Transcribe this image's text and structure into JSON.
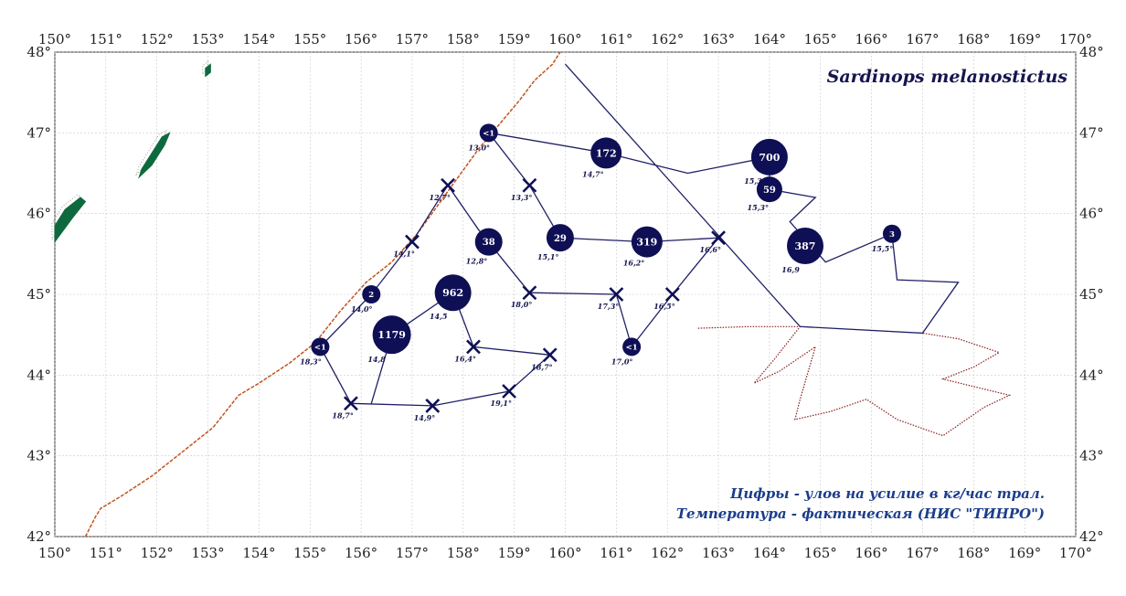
{
  "title": "Sardinops melanostictus",
  "legend": {
    "line1": "Цифры - улов на усилие в кг/час трал.",
    "line2": "Температура - фактическая (НИС \"ТИНРО\")"
  },
  "axes": {
    "lon_labels": [
      "150°",
      "151°",
      "152°",
      "153°",
      "154°",
      "155°",
      "156°",
      "157°",
      "158°",
      "159°",
      "160°",
      "161°",
      "162°",
      "163°",
      "164°",
      "165°",
      "166°",
      "167°",
      "168°",
      "169°",
      "170°"
    ],
    "lat_labels": [
      "48°",
      "47°",
      "46°",
      "45°",
      "44°",
      "43°",
      "42°"
    ],
    "lon_range": [
      150,
      170
    ],
    "lat_range": [
      42,
      48
    ]
  },
  "colors": {
    "track": "#1f1f66",
    "marker": "#0f0f55",
    "coast": "#c0551e",
    "land": "#0e6a3e",
    "zone": "#8a1e1e",
    "grid": "#c9c9c9"
  },
  "track": [
    [
      160.0,
      47.85
    ],
    [
      164.6,
      44.6
    ],
    [
      167.0,
      44.52
    ],
    [
      167.7,
      45.15
    ],
    [
      166.5,
      45.18
    ],
    [
      166.4,
      45.75
    ],
    [
      165.1,
      45.4
    ],
    [
      164.4,
      45.9
    ],
    [
      164.9,
      46.2
    ],
    [
      164.0,
      46.3
    ],
    [
      164.0,
      46.7
    ],
    [
      162.4,
      46.5
    ],
    [
      160.8,
      46.75
    ],
    [
      158.5,
      47.0
    ],
    [
      159.3,
      46.35
    ],
    [
      159.9,
      45.7
    ],
    [
      161.6,
      45.65
    ],
    [
      163.0,
      45.7
    ],
    [
      162.1,
      45.0
    ],
    [
      161.3,
      44.35
    ],
    [
      161.0,
      45.0
    ],
    [
      159.3,
      45.02
    ],
    [
      158.3,
      45.8
    ],
    [
      157.7,
      46.35
    ],
    [
      157.0,
      45.65
    ],
    [
      156.2,
      45.0
    ],
    [
      155.2,
      44.35
    ],
    [
      155.8,
      43.65
    ],
    [
      157.4,
      43.62
    ],
    [
      158.9,
      43.8
    ],
    [
      159.7,
      44.25
    ],
    [
      158.2,
      44.35
    ],
    [
      157.8,
      45.02
    ],
    [
      156.6,
      44.5
    ],
    [
      156.2,
      43.65
    ]
  ],
  "stations": [
    {
      "lon": 158.5,
      "lat": 47.0,
      "type": "circle",
      "catch": "<1",
      "r": 10,
      "temp": "13,0°"
    },
    {
      "lon": 160.8,
      "lat": 46.75,
      "type": "circle",
      "catch": "172",
      "r": 17,
      "temp": "14,7°"
    },
    {
      "lon": 164.0,
      "lat": 46.7,
      "type": "circle",
      "catch": "700",
      "r": 20,
      "temp": "15,3°"
    },
    {
      "lon": 164.0,
      "lat": 46.3,
      "type": "circle",
      "catch": "59",
      "r": 14,
      "temp": "15,3°"
    },
    {
      "lon": 164.7,
      "lat": 45.6,
      "type": "circle",
      "catch": "387",
      "r": 20,
      "temp": "16,9"
    },
    {
      "lon": 166.4,
      "lat": 45.75,
      "type": "circle",
      "catch": "3",
      "r": 10,
      "temp": "15,5°"
    },
    {
      "lon": 159.3,
      "lat": 46.35,
      "type": "cross",
      "catch": "",
      "r": 0,
      "temp": "13,3°"
    },
    {
      "lon": 157.7,
      "lat": 46.35,
      "type": "cross",
      "catch": "",
      "r": 0,
      "temp": "12,7°"
    },
    {
      "lon": 158.5,
      "lat": 45.65,
      "type": "circle",
      "catch": "38",
      "r": 15,
      "temp": "12,8°"
    },
    {
      "lon": 159.9,
      "lat": 45.7,
      "type": "circle",
      "catch": "29",
      "r": 15,
      "temp": "15,1°"
    },
    {
      "lon": 161.6,
      "lat": 45.65,
      "type": "circle",
      "catch": "319",
      "r": 17,
      "temp": "16,2°"
    },
    {
      "lon": 163.0,
      "lat": 45.7,
      "type": "cross",
      "catch": "",
      "r": 0,
      "temp": "16,6°"
    },
    {
      "lon": 157.0,
      "lat": 45.65,
      "type": "cross",
      "catch": "",
      "r": 0,
      "temp": "14,1°"
    },
    {
      "lon": 157.8,
      "lat": 45.02,
      "type": "circle",
      "catch": "962",
      "r": 20,
      "temp": "14,5"
    },
    {
      "lon": 159.3,
      "lat": 45.02,
      "type": "cross",
      "catch": "",
      "r": 0,
      "temp": "18,0°"
    },
    {
      "lon": 161.0,
      "lat": 45.0,
      "type": "cross",
      "catch": "",
      "r": 0,
      "temp": "17,3°"
    },
    {
      "lon": 162.1,
      "lat": 45.0,
      "type": "cross",
      "catch": "",
      "r": 0,
      "temp": "16,5°"
    },
    {
      "lon": 156.2,
      "lat": 45.0,
      "type": "circle",
      "catch": "2",
      "r": 10,
      "temp": "14,0°"
    },
    {
      "lon": 155.2,
      "lat": 44.35,
      "type": "circle",
      "catch": "<1",
      "r": 10,
      "temp": "18,3°"
    },
    {
      "lon": 156.6,
      "lat": 44.5,
      "type": "circle",
      "catch": "1179",
      "r": 21,
      "temp": "14,8"
    },
    {
      "lon": 158.2,
      "lat": 44.35,
      "type": "cross",
      "catch": "",
      "r": 0,
      "temp": "16,4°"
    },
    {
      "lon": 159.7,
      "lat": 44.25,
      "type": "cross",
      "catch": "",
      "r": 0,
      "temp": "18,7°"
    },
    {
      "lon": 161.3,
      "lat": 44.35,
      "type": "circle",
      "catch": "<1",
      "r": 10,
      "temp": "17,0°"
    },
    {
      "lon": 155.8,
      "lat": 43.65,
      "type": "cross",
      "catch": "",
      "r": 0,
      "temp": "18,7°"
    },
    {
      "lon": 157.4,
      "lat": 43.62,
      "type": "cross",
      "catch": "",
      "r": 0,
      "temp": "14,9°"
    },
    {
      "lon": 158.9,
      "lat": 43.8,
      "type": "cross",
      "catch": "",
      "r": 0,
      "temp": "19,1°"
    }
  ],
  "coastline": [
    [
      150.6,
      42.0
    ],
    [
      150.8,
      42.25
    ],
    [
      150.9,
      42.35
    ],
    [
      151.3,
      42.5
    ],
    [
      151.9,
      42.75
    ],
    [
      152.5,
      43.05
    ],
    [
      153.1,
      43.35
    ],
    [
      153.6,
      43.75
    ],
    [
      154.0,
      43.9
    ],
    [
      154.6,
      44.15
    ],
    [
      155.1,
      44.4
    ],
    [
      155.6,
      44.8
    ],
    [
      156.1,
      45.15
    ],
    [
      156.6,
      45.4
    ],
    [
      157.1,
      45.75
    ],
    [
      157.5,
      46.1
    ],
    [
      157.9,
      46.45
    ],
    [
      158.3,
      46.8
    ],
    [
      158.7,
      47.1
    ],
    [
      159.1,
      47.4
    ],
    [
      159.4,
      47.65
    ],
    [
      159.75,
      47.85
    ],
    [
      159.9,
      48.0
    ]
  ],
  "zone": [
    [
      162.6,
      44.58
    ],
    [
      163.6,
      44.6
    ],
    [
      164.6,
      44.6
    ],
    [
      164.1,
      44.2
    ],
    [
      163.7,
      43.9
    ],
    [
      164.2,
      44.05
    ],
    [
      164.9,
      44.35
    ],
    [
      164.6,
      43.7
    ],
    [
      164.5,
      43.45
    ],
    [
      165.2,
      43.55
    ],
    [
      165.9,
      43.7
    ],
    [
      166.5,
      43.45
    ],
    [
      167.4,
      43.25
    ],
    [
      168.2,
      43.6
    ],
    [
      168.7,
      43.75
    ],
    [
      167.4,
      43.95
    ],
    [
      168.0,
      44.1
    ],
    [
      168.5,
      44.28
    ],
    [
      167.7,
      44.45
    ],
    [
      167.0,
      44.52
    ]
  ],
  "islands": [
    [
      [
        150.0,
        45.65
      ],
      [
        150.35,
        45.95
      ],
      [
        150.6,
        46.15
      ],
      [
        150.5,
        46.2
      ],
      [
        150.2,
        46.05
      ],
      [
        150.0,
        45.85
      ]
    ],
    [
      [
        151.65,
        46.45
      ],
      [
        151.9,
        46.6
      ],
      [
        152.15,
        46.85
      ],
      [
        152.25,
        47.0
      ],
      [
        152.1,
        46.95
      ],
      [
        151.9,
        46.75
      ],
      [
        151.7,
        46.55
      ]
    ],
    [
      [
        152.95,
        47.7
      ],
      [
        153.05,
        47.75
      ],
      [
        153.05,
        47.85
      ],
      [
        152.95,
        47.8
      ]
    ]
  ]
}
